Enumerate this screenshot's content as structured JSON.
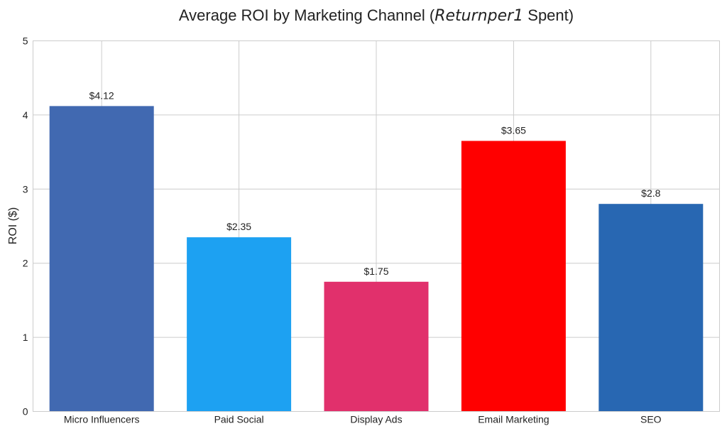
{
  "chart_data": {
    "type": "bar",
    "title": {
      "prefix": "Average ROI by Marketing Channel (",
      "emphasis": "Returnper",
      "emphasis_tail": "1",
      "suffix": " Spent)"
    },
    "xlabel": "",
    "ylabel": "ROI ($)",
    "ylim": [
      0,
      5
    ],
    "yticks": [
      "0",
      "1",
      "2",
      "3",
      "4",
      "5"
    ],
    "grid": true,
    "categories": [
      "Micro Influencers",
      "Paid Social",
      "Display Ads",
      "Email Marketing",
      "SEO"
    ],
    "values": [
      4.12,
      2.35,
      1.75,
      3.65,
      2.8
    ],
    "data_labels": [
      "$4.12",
      "$2.35",
      "$1.75",
      "$3.65",
      "$2.8"
    ],
    "colors": [
      "#4169b1",
      "#1da1f2",
      "#e1306c",
      "#ff0000",
      "#2867b2"
    ]
  }
}
